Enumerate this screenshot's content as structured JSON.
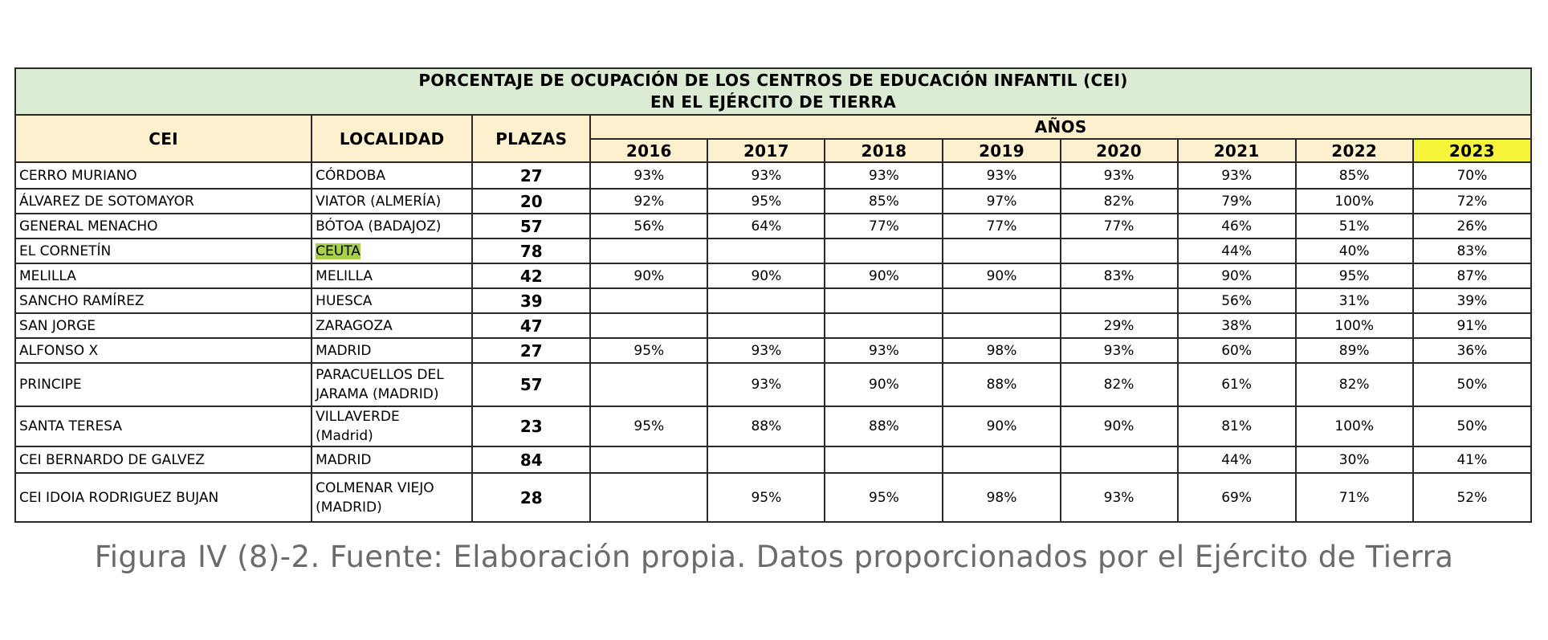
{
  "chart_data": {
    "type": "table",
    "title": [
      "PORCENTAJE DE OCUPACIÓN DE LOS CENTROS DE EDUCACIÓN INFANTIL (CEI)",
      "EN EL EJÉRCITO DE TIERRA"
    ],
    "columns": {
      "cei": "CEI",
      "localidad": "LOCALIDAD",
      "plazas": "PLAZAS",
      "anos": "AÑOS"
    },
    "years": [
      "2016",
      "2017",
      "2018",
      "2019",
      "2020",
      "2021",
      "2022",
      "2023"
    ],
    "highlight_year": "2023",
    "highlight_color": "#f7f53a",
    "title_bg": "#dcebd4",
    "header_bg": "#fdf0cf",
    "rows": [
      {
        "cei": "CERRO MURIANO",
        "localidad": [
          "CÓRDOBA"
        ],
        "plazas": "27",
        "values": [
          "93%",
          "93%",
          "93%",
          "93%",
          "93%",
          "93%",
          "85%",
          "70%"
        ]
      },
      {
        "cei": "ÁLVAREZ DE SOTOMAYOR",
        "localidad": [
          "VIATOR (ALMERÍA)"
        ],
        "plazas": "20",
        "values": [
          "92%",
          "95%",
          "85%",
          "97%",
          "82%",
          "79%",
          "100%",
          "72%"
        ]
      },
      {
        "cei": "GENERAL MENACHO",
        "localidad": [
          "BÓTOA (BADAJOZ)"
        ],
        "plazas": "57",
        "values": [
          "56%",
          "64%",
          "77%",
          "77%",
          "77%",
          "46%",
          "51%",
          "26%"
        ]
      },
      {
        "cei": "EL CORNETÍN",
        "localidad": [
          "CEUTA"
        ],
        "plazas": "78",
        "localidad_highlight": "#a8d04c",
        "values": [
          "",
          "",
          "",
          "",
          "",
          "44%",
          "40%",
          "83%"
        ]
      },
      {
        "cei": "MELILLA",
        "localidad": [
          "MELILLA"
        ],
        "plazas": "42",
        "values": [
          "90%",
          "90%",
          "90%",
          "90%",
          "83%",
          "90%",
          "95%",
          "87%"
        ]
      },
      {
        "cei": "SANCHO RAMÍREZ",
        "localidad": [
          "HUESCA"
        ],
        "plazas": "39",
        "values": [
          "",
          "",
          "",
          "",
          "",
          "56%",
          "31%",
          "39%"
        ]
      },
      {
        "cei": "SAN JORGE",
        "localidad": [
          "ZARAGOZA"
        ],
        "plazas": "47",
        "values": [
          "",
          "",
          "",
          "",
          "29%",
          "38%",
          "100%",
          "91%"
        ]
      },
      {
        "cei": "ALFONSO X",
        "localidad": [
          "MADRID"
        ],
        "plazas": "27",
        "values": [
          "95%",
          "93%",
          "93%",
          "98%",
          "93%",
          "60%",
          "89%",
          "36%"
        ]
      },
      {
        "cei": "PRINCIPE",
        "localidad": [
          "PARACUELLOS DEL",
          "JARAMA (MADRID)"
        ],
        "plazas": "57",
        "values": [
          "",
          "93%",
          "90%",
          "88%",
          "82%",
          "61%",
          "82%",
          "50%"
        ]
      },
      {
        "cei": "SANTA TERESA",
        "localidad": [
          "VILLAVERDE",
          "(Madrid)"
        ],
        "plazas": "23",
        "values": [
          "95%",
          "88%",
          "88%",
          "90%",
          "90%",
          "81%",
          "100%",
          "50%"
        ]
      },
      {
        "cei": "CEI BERNARDO DE GALVEZ",
        "localidad": [
          " MADRID"
        ],
        "plazas": "84",
        "values": [
          "",
          "",
          "",
          "",
          "",
          "44%",
          "30%",
          "41%"
        ]
      },
      {
        "cei": "CEI IDOIA RODRIGUEZ BUJAN",
        "localidad": [
          "COLMENAR VIEJO",
          "(MADRID)"
        ],
        "plazas": "28",
        "values": [
          "",
          "95%",
          "95%",
          "98%",
          "93%",
          "69%",
          "71%",
          "52%"
        ]
      }
    ]
  },
  "caption": "Figura IV (8)-2. Fuente: Elaboración propia. Datos proporcionados por el Ejército de Tierra"
}
